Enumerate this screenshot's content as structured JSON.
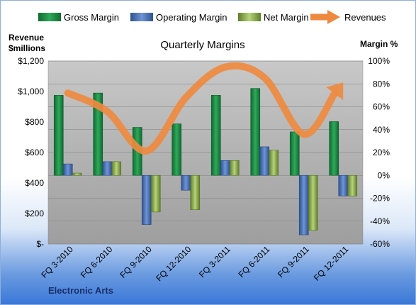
{
  "chart_data": {
    "type": "bar",
    "title": "Quarterly Margins",
    "company": "Electronic Arts",
    "left_axis_label_line1": "Revenue",
    "left_axis_label_line2": "$millions",
    "right_axis_label": "Margin %",
    "left_ticks": [
      "$-",
      "$200",
      "$400",
      "$600",
      "$800",
      "$1,000",
      "$1,200"
    ],
    "right_ticks": [
      "-60%",
      "-40%",
      "-20%",
      "0%",
      "20%",
      "40%",
      "60%",
      "80%",
      "100%"
    ],
    "categories": [
      "FQ 3-2010",
      "FQ 6-2010",
      "FQ 9-2010",
      "FQ 12-2010",
      "FQ 3-2011",
      "FQ 6-2011",
      "FQ 9-2011",
      "FQ 12-2011"
    ],
    "ylim_revenue": [
      0,
      1200
    ],
    "ylim_margin": [
      -60,
      100
    ],
    "series": [
      {
        "name": "Gross Margin",
        "axis": "margin",
        "color": "#1e8a45",
        "values": [
          70,
          72,
          42,
          45,
          70,
          76,
          38,
          47
        ]
      },
      {
        "name": "Operating Margin",
        "axis": "margin",
        "color": "#4a72bf",
        "values": [
          10,
          12,
          -43,
          -13,
          13,
          25,
          -52,
          -18
        ]
      },
      {
        "name": "Net Margin",
        "axis": "margin",
        "color": "#8fb04e",
        "values": [
          2,
          12,
          -32,
          -30,
          13,
          22,
          -48,
          -18
        ]
      },
      {
        "name": "Revenues",
        "axis": "revenue",
        "type": "line",
        "color": "#ee8a40",
        "values": [
          990,
          870,
          610,
          960,
          1160,
          1090,
          720,
          1060
        ]
      }
    ]
  }
}
